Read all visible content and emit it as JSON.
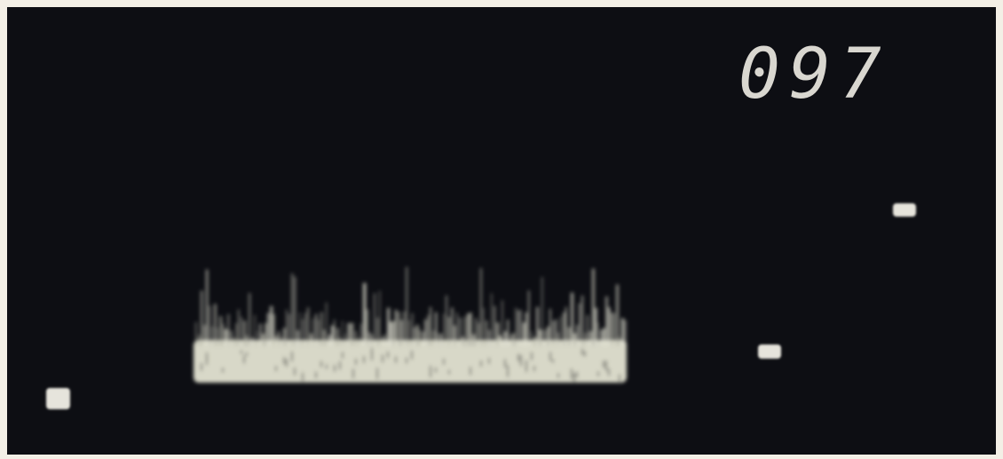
{
  "hud": {
    "score": "097"
  }
}
